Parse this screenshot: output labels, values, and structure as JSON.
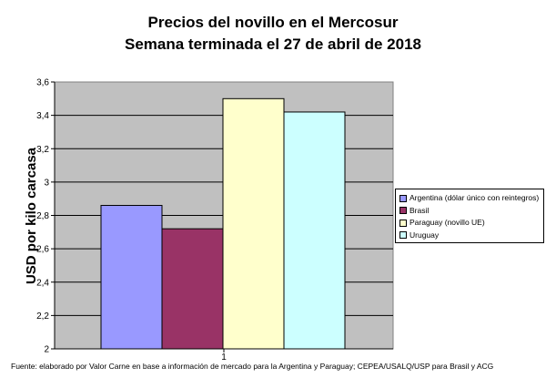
{
  "chart_data": {
    "type": "bar",
    "title": "Precios del novillo en el Mercosur",
    "subtitle": "Semana terminada el 27 de abril de 2018",
    "xlabel": "",
    "ylabel": "USD por kilo carcasa",
    "categories": [
      "1"
    ],
    "series": [
      {
        "name": "Argentina (dólar único con reintegros)",
        "values": [
          2.86
        ],
        "color": "#9999ff"
      },
      {
        "name": "Brasil",
        "values": [
          2.72
        ],
        "color": "#993366"
      },
      {
        "name": "Paraguay (novillo UE)",
        "values": [
          3.5
        ],
        "color": "#ffffcc"
      },
      {
        "name": "Uruguay",
        "values": [
          3.42
        ],
        "color": "#ccffff"
      }
    ],
    "ylim": [
      2,
      3.6
    ],
    "yticks": [
      "2",
      "2,2",
      "2,4",
      "2,6",
      "2,8",
      "3",
      "3,2",
      "3,4",
      "3,6"
    ],
    "grid": true,
    "legend_position": "right",
    "plot_background": "#c0c0c0"
  },
  "footer": "Fuente: elaborado por Valor Carne en base a información de mercado para la Argentina y Paraguay; CEPEA/USALQ/USP para Brasil y ACG"
}
